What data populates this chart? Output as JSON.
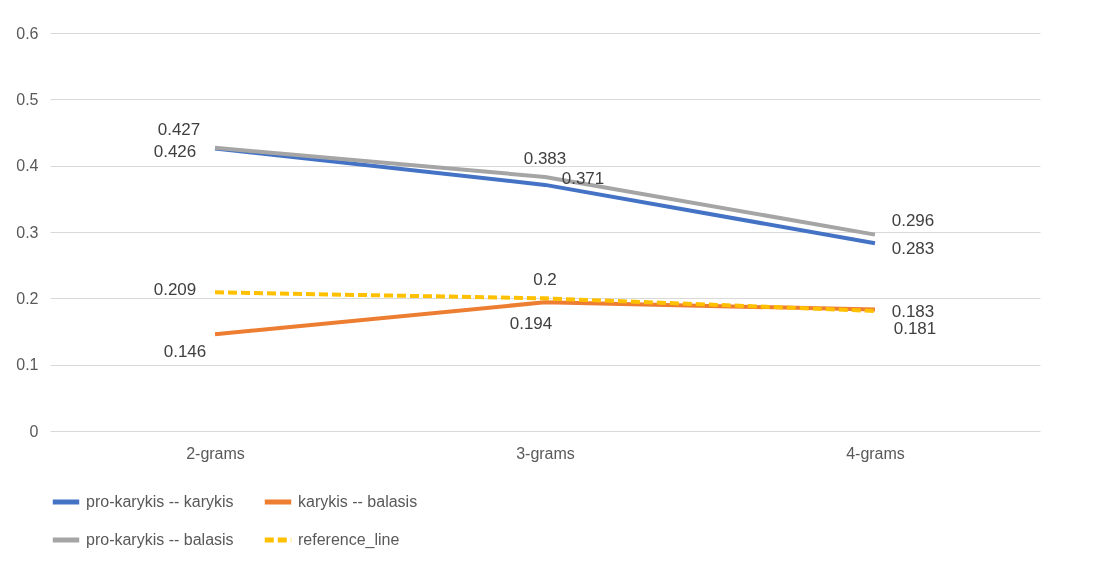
{
  "chart_data": {
    "type": "line",
    "categories": [
      "2-grams",
      "3-grams",
      "4-grams"
    ],
    "series": [
      {
        "name": "pro-karykis -- karykis",
        "color": "#4472c4",
        "values": [
          0.426,
          0.371,
          0.283
        ]
      },
      {
        "name": "karykis -- balasis",
        "color": "#ed7d31",
        "values": [
          0.146,
          0.194,
          0.183
        ]
      },
      {
        "name": "pro-karykis -- balasis",
        "color": "#a5a5a5",
        "values": [
          0.427,
          0.383,
          0.296
        ]
      },
      {
        "name": "reference_line",
        "color": "#ffc000",
        "values": [
          0.209,
          0.2,
          0.181
        ],
        "line_style": "dashed"
      }
    ],
    "ylim": [
      0,
      0.6
    ],
    "yticks": [
      0,
      0.1,
      0.2,
      0.3,
      0.4,
      0.5,
      0.6
    ],
    "grid": "y",
    "legend": "bottom",
    "data_labels": true,
    "marker": "none",
    "line_style": "solid"
  }
}
